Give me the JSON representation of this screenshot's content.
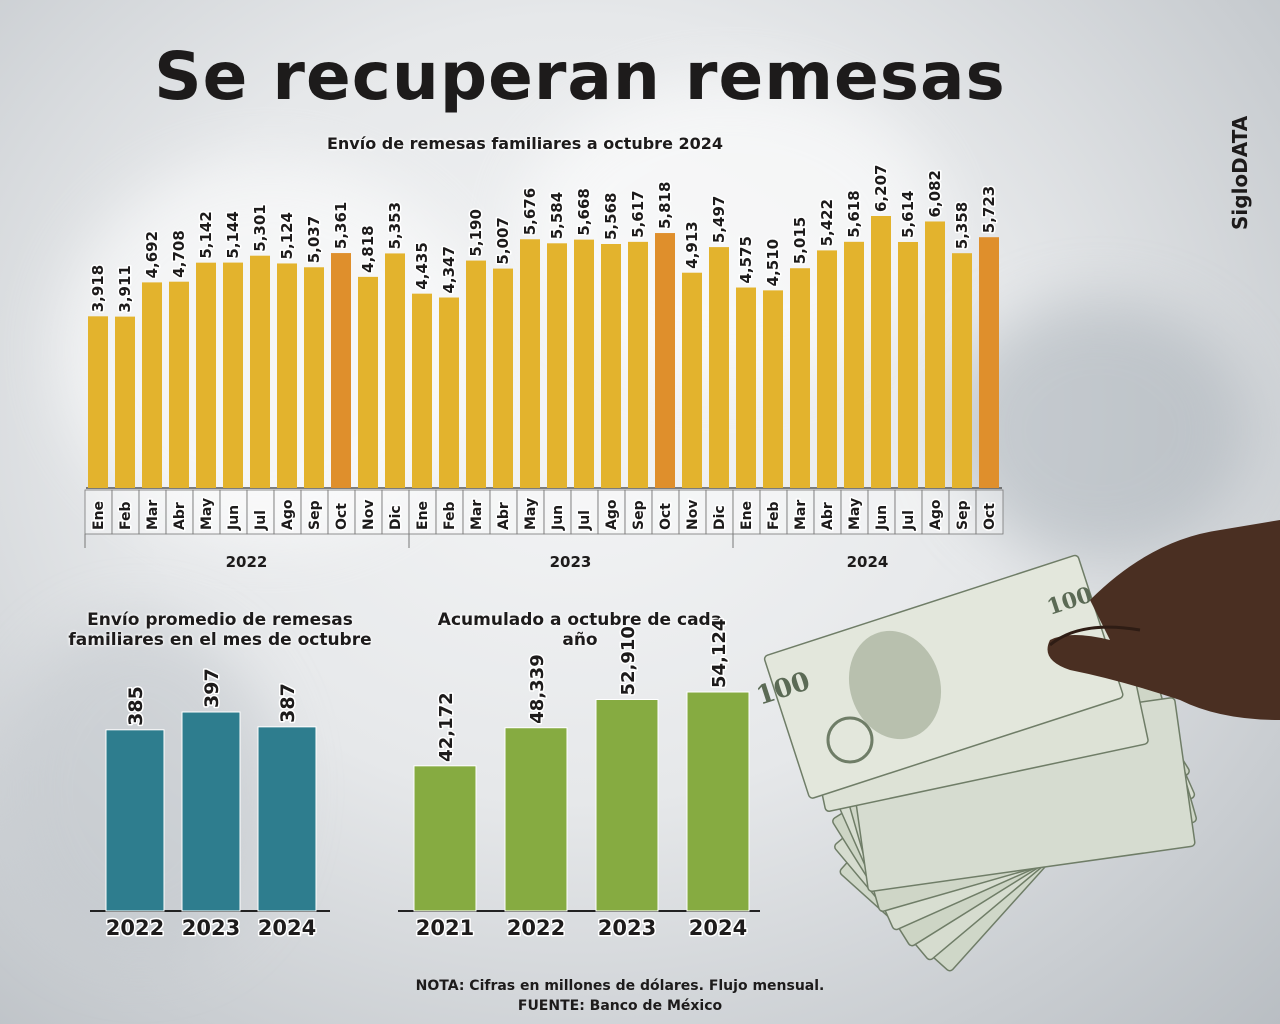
{
  "title": "Se recuperan remesas",
  "brand": "SigloDATA",
  "note_line": "NOTA: Cifras en millones de dólares. Flujo mensual.",
  "source_line": "FUENTE: Banco de México",
  "colors": {
    "bar_gold": "#e3b32d",
    "bar_orange": "#df8f2c",
    "bar_teal": "#2e7d8e",
    "bar_green": "#86ab41",
    "text": "#1d1b1b"
  },
  "chart_data": [
    {
      "type": "bar",
      "title": "Envío de remesas familiares a octubre 2024",
      "xlabel": "",
      "ylabel": "",
      "ylim": [
        0,
        6207
      ],
      "groups": [
        "2022",
        "2023",
        "2024"
      ],
      "categories": [
        "Ene",
        "Feb",
        "Mar",
        "Abr",
        "May",
        "Jun",
        "Jul",
        "Ago",
        "Sep",
        "Oct",
        "Nov",
        "Dic",
        "Ene",
        "Feb",
        "Mar",
        "Abr",
        "May",
        "Jun",
        "Jul",
        "Ago",
        "Sep",
        "Oct",
        "Nov",
        "Dic",
        "Ene",
        "Feb",
        "Mar",
        "Abr",
        "May",
        "Jun",
        "Jul",
        "Ago",
        "Sep",
        "Oct"
      ],
      "group_of_category": [
        0,
        0,
        0,
        0,
        0,
        0,
        0,
        0,
        0,
        0,
        0,
        0,
        1,
        1,
        1,
        1,
        1,
        1,
        1,
        1,
        1,
        1,
        1,
        1,
        2,
        2,
        2,
        2,
        2,
        2,
        2,
        2,
        2,
        2
      ],
      "values": [
        3918,
        3911,
        4692,
        4708,
        5142,
        5144,
        5301,
        5124,
        5037,
        5361,
        4818,
        5353,
        4435,
        4347,
        5190,
        5007,
        5676,
        5584,
        5668,
        5568,
        5617,
        5818,
        4913,
        5497,
        4575,
        4510,
        5015,
        5422,
        5618,
        6207,
        5614,
        6082,
        5358,
        5723
      ],
      "labels": [
        "3,918",
        "3,911",
        "4,692",
        "4,708",
        "5,142",
        "5,144",
        "5,301",
        "5,124",
        "5,037",
        "5,361",
        "4,818",
        "5,353",
        "4,435",
        "4,347",
        "5,190",
        "5,007",
        "5,676",
        "5,584",
        "5,668",
        "5,568",
        "5,617",
        "5,818",
        "4,913",
        "5,497",
        "4,575",
        "4,510",
        "5,015",
        "5,422",
        "5,618",
        "6,207",
        "5,614",
        "6,082",
        "5,358",
        "5,723"
      ],
      "highlight": [
        "Oct"
      ]
    },
    {
      "type": "bar",
      "title": "Envío promedio de remesas familiares en el mes de octubre",
      "categories": [
        "2022",
        "2023",
        "2024"
      ],
      "values": [
        385,
        397,
        387
      ],
      "labels": [
        "385",
        "397",
        "387"
      ],
      "ylim": [
        0,
        397
      ]
    },
    {
      "type": "bar",
      "title": "Acumulado a octubre de cada año",
      "categories": [
        "2021",
        "2022",
        "2023",
        "2024"
      ],
      "values": [
        42172,
        48339,
        52910,
        54124
      ],
      "labels": [
        "42,172",
        "48,339",
        "52,910",
        "54,124"
      ],
      "ylim": [
        0,
        54124
      ]
    }
  ]
}
